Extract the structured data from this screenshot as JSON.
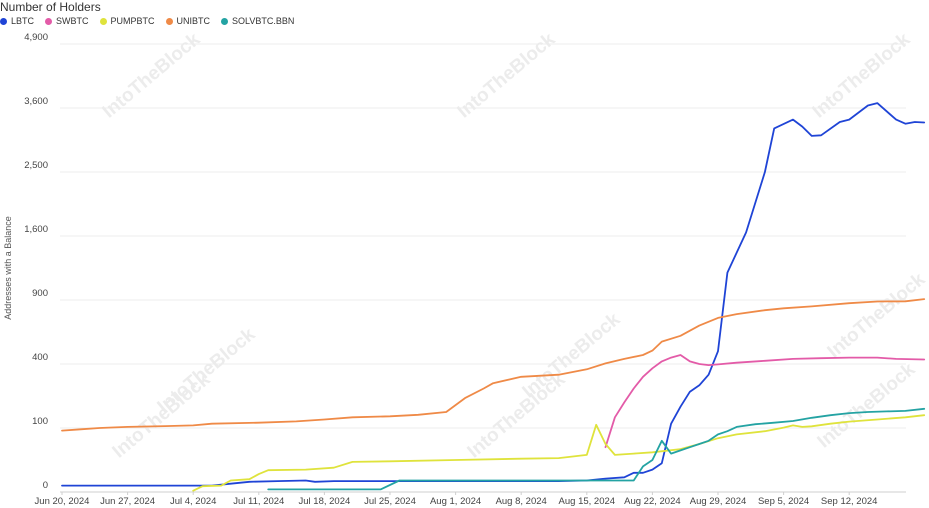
{
  "watermark": "IntoTheBlock",
  "chart_data": {
    "type": "line",
    "title": "Number of Holders",
    "ylabel": "Addresses with a Balance",
    "xlabel": "",
    "y_scale": "nonlinear (uneven tick spacing)",
    "y_ticks": [
      0,
      100,
      400,
      900,
      1600,
      2500,
      3600,
      4900
    ],
    "x_ticks": [
      "Jun 20, 2024",
      "Jun 27, 2024",
      "Jul 4, 2024",
      "Jul 11, 2024",
      "Jul 18, 2024",
      "Jul 25, 2024",
      "Aug 1, 2024",
      "Aug 8, 2024",
      "Aug 15, 2024",
      "Aug 22, 2024",
      "Aug 29, 2024",
      "Sep 5, 2024",
      "Sep 12, 2024"
    ],
    "grid": "horizontal",
    "legend_position": "top-left",
    "series": [
      {
        "name": "LBTC",
        "color": "#1f44d6",
        "points": [
          [
            "2024-06-20",
            10
          ],
          [
            "2024-06-27",
            10
          ],
          [
            "2024-07-04",
            10
          ],
          [
            "2024-07-06",
            10
          ],
          [
            "2024-07-08",
            13
          ],
          [
            "2024-07-10",
            16
          ],
          [
            "2024-07-13",
            17
          ],
          [
            "2024-07-16",
            18
          ],
          [
            "2024-07-17",
            16
          ],
          [
            "2024-07-19",
            17
          ],
          [
            "2024-07-25",
            17
          ],
          [
            "2024-08-01",
            17
          ],
          [
            "2024-08-08",
            17
          ],
          [
            "2024-08-12",
            17
          ],
          [
            "2024-08-15",
            18
          ],
          [
            "2024-08-17",
            21
          ],
          [
            "2024-08-19",
            23
          ],
          [
            "2024-08-20",
            30
          ],
          [
            "2024-08-21",
            30
          ],
          [
            "2024-08-22",
            35
          ],
          [
            "2024-08-23",
            45
          ],
          [
            "2024-08-24",
            120
          ],
          [
            "2024-08-25",
            200
          ],
          [
            "2024-08-26",
            270
          ],
          [
            "2024-08-27",
            300
          ],
          [
            "2024-08-28",
            350
          ],
          [
            "2024-08-29",
            500
          ],
          [
            "2024-08-30",
            1200
          ],
          [
            "2024-09-01",
            1650
          ],
          [
            "2024-09-03",
            2500
          ],
          [
            "2024-09-04",
            3250
          ],
          [
            "2024-09-06",
            3400
          ],
          [
            "2024-09-07",
            3280
          ],
          [
            "2024-09-08",
            3120
          ],
          [
            "2024-09-09",
            3130
          ],
          [
            "2024-09-11",
            3360
          ],
          [
            "2024-09-12",
            3400
          ],
          [
            "2024-09-14",
            3650
          ],
          [
            "2024-09-15",
            3700
          ],
          [
            "2024-09-17",
            3400
          ],
          [
            "2024-09-18",
            3330
          ],
          [
            "2024-09-19",
            3360
          ],
          [
            "2024-09-20",
            3350
          ]
        ]
      },
      {
        "name": "SWBTC",
        "color": "#e35ba8",
        "points": [
          [
            "2024-08-17",
            70
          ],
          [
            "2024-08-18",
            150
          ],
          [
            "2024-08-19",
            220
          ],
          [
            "2024-08-20",
            285
          ],
          [
            "2024-08-21",
            340
          ],
          [
            "2024-08-22",
            380
          ],
          [
            "2024-08-23",
            420
          ],
          [
            "2024-08-24",
            450
          ],
          [
            "2024-08-25",
            470
          ],
          [
            "2024-08-26",
            420
          ],
          [
            "2024-08-27",
            400
          ],
          [
            "2024-08-28",
            395
          ],
          [
            "2024-08-29",
            398
          ],
          [
            "2024-08-31",
            410
          ],
          [
            "2024-09-03",
            425
          ],
          [
            "2024-09-06",
            440
          ],
          [
            "2024-09-09",
            445
          ],
          [
            "2024-09-12",
            450
          ],
          [
            "2024-09-15",
            450
          ],
          [
            "2024-09-17",
            440
          ],
          [
            "2024-09-20",
            435
          ]
        ]
      },
      {
        "name": "PUMPBTC",
        "color": "#dfe33c",
        "points": [
          [
            "2024-07-04",
            2
          ],
          [
            "2024-07-05",
            9
          ],
          [
            "2024-07-07",
            10
          ],
          [
            "2024-07-08",
            18
          ],
          [
            "2024-07-10",
            20
          ],
          [
            "2024-07-11",
            28
          ],
          [
            "2024-07-12",
            34
          ],
          [
            "2024-07-16",
            35
          ],
          [
            "2024-07-19",
            38
          ],
          [
            "2024-07-21",
            47
          ],
          [
            "2024-07-25",
            48
          ],
          [
            "2024-08-01",
            50
          ],
          [
            "2024-08-08",
            52
          ],
          [
            "2024-08-12",
            53
          ],
          [
            "2024-08-15",
            58
          ],
          [
            "2024-08-16",
            115
          ],
          [
            "2024-08-17",
            75
          ],
          [
            "2024-08-18",
            58
          ],
          [
            "2024-08-20",
            60
          ],
          [
            "2024-08-22",
            62
          ],
          [
            "2024-08-25",
            67
          ],
          [
            "2024-08-27",
            75
          ],
          [
            "2024-08-29",
            84
          ],
          [
            "2024-08-31",
            90
          ],
          [
            "2024-09-03",
            95
          ],
          [
            "2024-09-05",
            102
          ],
          [
            "2024-09-06",
            112
          ],
          [
            "2024-09-07",
            105
          ],
          [
            "2024-09-08",
            108
          ],
          [
            "2024-09-10",
            120
          ],
          [
            "2024-09-12",
            130
          ],
          [
            "2024-09-15",
            140
          ],
          [
            "2024-09-18",
            150
          ],
          [
            "2024-09-20",
            160
          ]
        ]
      },
      {
        "name": "UNIBTC",
        "color": "#ef8a47",
        "points": [
          [
            "2024-06-20",
            96
          ],
          [
            "2024-06-22",
            98
          ],
          [
            "2024-06-24",
            100
          ],
          [
            "2024-06-27",
            105
          ],
          [
            "2024-07-01",
            109
          ],
          [
            "2024-07-04",
            112
          ],
          [
            "2024-07-06",
            120
          ],
          [
            "2024-07-11",
            125
          ],
          [
            "2024-07-15",
            131
          ],
          [
            "2024-07-18",
            140
          ],
          [
            "2024-07-21",
            150
          ],
          [
            "2024-07-25",
            155
          ],
          [
            "2024-07-28",
            162
          ],
          [
            "2024-07-31",
            175
          ],
          [
            "2024-08-02",
            240
          ],
          [
            "2024-08-04",
            285
          ],
          [
            "2024-08-05",
            310
          ],
          [
            "2024-08-08",
            340
          ],
          [
            "2024-08-12",
            350
          ],
          [
            "2024-08-15",
            375
          ],
          [
            "2024-08-17",
            405
          ],
          [
            "2024-08-19",
            440
          ],
          [
            "2024-08-21",
            470
          ],
          [
            "2024-08-22",
            505
          ],
          [
            "2024-08-23",
            575
          ],
          [
            "2024-08-25",
            620
          ],
          [
            "2024-08-27",
            700
          ],
          [
            "2024-08-29",
            760
          ],
          [
            "2024-08-31",
            790
          ],
          [
            "2024-09-03",
            820
          ],
          [
            "2024-09-05",
            835
          ],
          [
            "2024-09-08",
            850
          ],
          [
            "2024-09-12",
            875
          ],
          [
            "2024-09-15",
            888
          ],
          [
            "2024-09-18",
            890
          ],
          [
            "2024-09-20",
            910
          ]
        ]
      },
      {
        "name": "SOLVBTC.BBN",
        "color": "#24a3a3",
        "points": [
          [
            "2024-07-12",
            4
          ],
          [
            "2024-07-18",
            4
          ],
          [
            "2024-07-24",
            4
          ],
          [
            "2024-07-26",
            18
          ],
          [
            "2024-07-28",
            18
          ],
          [
            "2024-08-01",
            18
          ],
          [
            "2024-08-08",
            18
          ],
          [
            "2024-08-15",
            18
          ],
          [
            "2024-08-20",
            18
          ],
          [
            "2024-08-21",
            40
          ],
          [
            "2024-08-22",
            50
          ],
          [
            "2024-08-23",
            80
          ],
          [
            "2024-08-24",
            60
          ],
          [
            "2024-08-25",
            65
          ],
          [
            "2024-08-26",
            70
          ],
          [
            "2024-08-27",
            75
          ],
          [
            "2024-08-28",
            80
          ],
          [
            "2024-08-29",
            90
          ],
          [
            "2024-08-30",
            95
          ],
          [
            "2024-08-31",
            105
          ],
          [
            "2024-09-02",
            118
          ],
          [
            "2024-09-04",
            125
          ],
          [
            "2024-09-06",
            133
          ],
          [
            "2024-09-08",
            148
          ],
          [
            "2024-09-10",
            160
          ],
          [
            "2024-09-12",
            170
          ],
          [
            "2024-09-14",
            175
          ],
          [
            "2024-09-16",
            178
          ],
          [
            "2024-09-18",
            180
          ],
          [
            "2024-09-20",
            190
          ]
        ]
      }
    ]
  }
}
